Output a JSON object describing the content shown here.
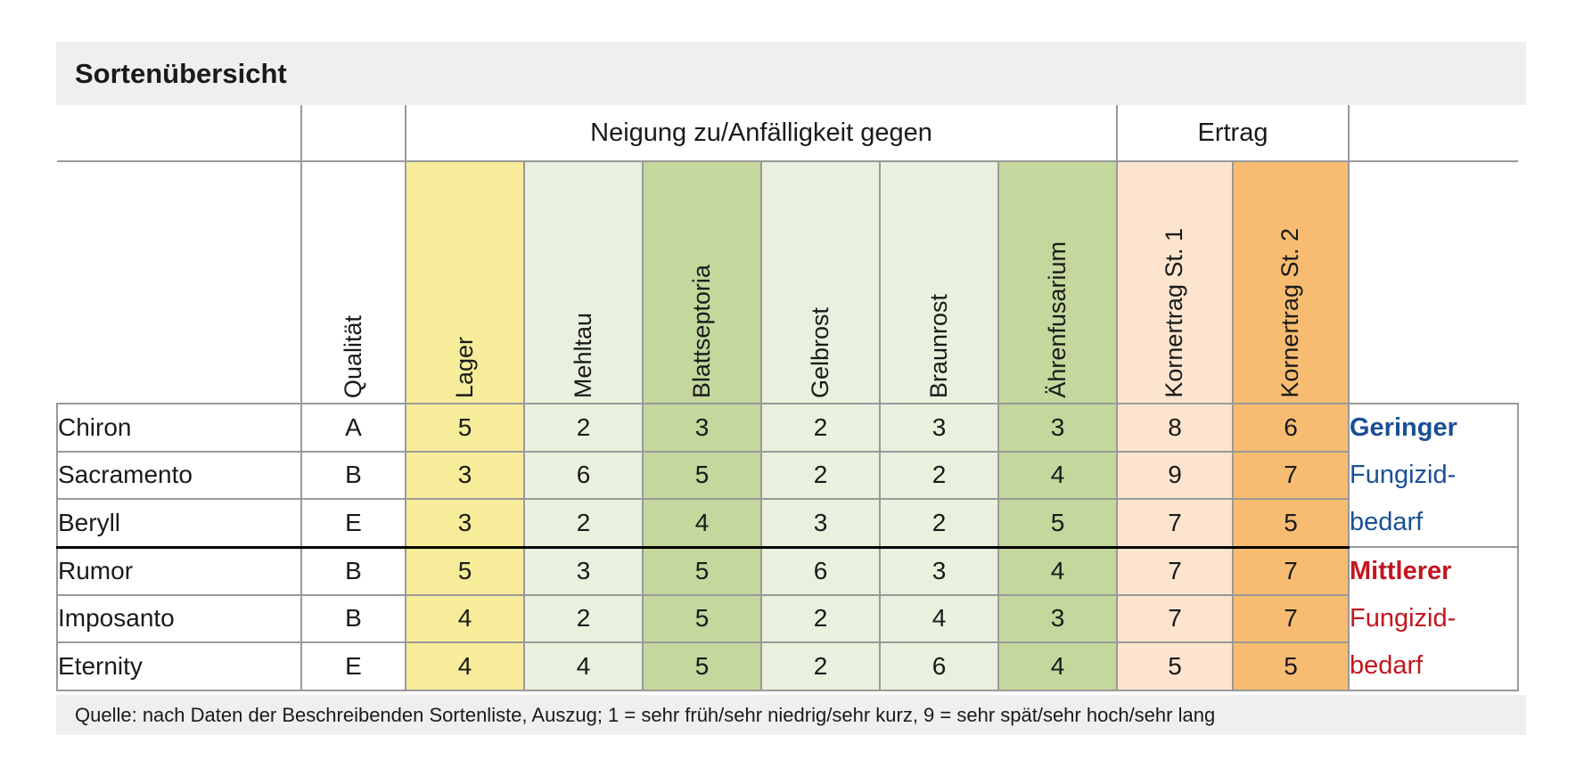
{
  "colors": {
    "banner_bg": "#efefef",
    "grid_line": "#999999",
    "group_divider": "#000000",
    "low_need_text": "#1a4f96",
    "medium_need_text": "#c2161f",
    "col_yellow": "#f7ec99",
    "col_light_green": "#e9f0dd",
    "col_medium_green": "#c4d79c",
    "col_peach": "#fce4cf",
    "col_orange": "#f7bc71"
  },
  "chart_data": {
    "type": "table",
    "title": "Sortenübersicht",
    "footnote": "Quelle: nach Daten der Beschreibenden Sortenliste, Auszug; 1 = sehr früh/sehr niedrig/sehr kurz, 9 = sehr spät/sehr hoch/sehr lang",
    "scale": {
      "min_label": "1 = sehr früh/sehr niedrig/sehr kurz",
      "max_label": "9 = sehr spät/sehr hoch/sehr lang"
    },
    "group_headers": [
      {
        "id": "susceptibility",
        "label": "Neigung zu/Anfälligkeit gegen",
        "colspan": 6
      },
      {
        "id": "yield",
        "label": "Ertrag",
        "colspan": 2
      }
    ],
    "columns": [
      {
        "label": "Qualität",
        "bg": "#ffffff",
        "group": null
      },
      {
        "label": "Lager",
        "bg": "#f7ec99",
        "group": "Neigung zu/Anfälligkeit gegen"
      },
      {
        "label": "Mehltau",
        "bg": "#e9f0dd",
        "group": "Neigung zu/Anfälligkeit gegen"
      },
      {
        "label": "Blattseptoria",
        "bg": "#c4d79c",
        "group": "Neigung zu/Anfälligkeit gegen"
      },
      {
        "label": "Gelbrost",
        "bg": "#e9f0dd",
        "group": "Neigung zu/Anfälligkeit gegen"
      },
      {
        "label": "Braunrost",
        "bg": "#e9f0dd",
        "group": "Neigung zu/Anfälligkeit gegen"
      },
      {
        "label": "Ährenfusarium",
        "bg": "#c4d79c",
        "group": "Neigung zu/Anfälligkeit gegen"
      },
      {
        "label": "Kornertrag St. 1",
        "bg": "#fce4cf",
        "group": "Ertrag"
      },
      {
        "label": "Kornertrag St. 2",
        "bg": "#f7bc71",
        "group": "Ertrag"
      }
    ],
    "rows": [
      {
        "variety": "Chiron",
        "values": [
          "A",
          5,
          2,
          3,
          2,
          3,
          3,
          8,
          6
        ],
        "group": "low"
      },
      {
        "variety": "Sacramento",
        "values": [
          "B",
          3,
          6,
          5,
          2,
          2,
          4,
          9,
          7
        ],
        "group": "low"
      },
      {
        "variety": "Beryll",
        "values": [
          "E",
          3,
          2,
          4,
          3,
          2,
          5,
          7,
          5
        ],
        "group": "low"
      },
      {
        "variety": "Rumor",
        "values": [
          "B",
          5,
          3,
          5,
          6,
          3,
          4,
          7,
          7
        ],
        "group": "medium"
      },
      {
        "variety": "Imposanto",
        "values": [
          "B",
          4,
          2,
          5,
          2,
          4,
          3,
          7,
          7
        ],
        "group": "medium"
      },
      {
        "variety": "Eternity",
        "values": [
          "E",
          4,
          4,
          5,
          2,
          6,
          4,
          5,
          5
        ],
        "group": "medium"
      }
    ],
    "row_groups": [
      {
        "id": "low",
        "label_lines": [
          "Geringer",
          "Fungizid-",
          "bedarf"
        ],
        "bold_line_index": 0,
        "color": "#1a4f96",
        "row_span": 3
      },
      {
        "id": "medium",
        "label_lines": [
          "Mittlerer",
          "Fungizid-",
          "bedarf"
        ],
        "bold_line_index": 0,
        "color": "#c2161f",
        "row_span": 3
      }
    ]
  }
}
